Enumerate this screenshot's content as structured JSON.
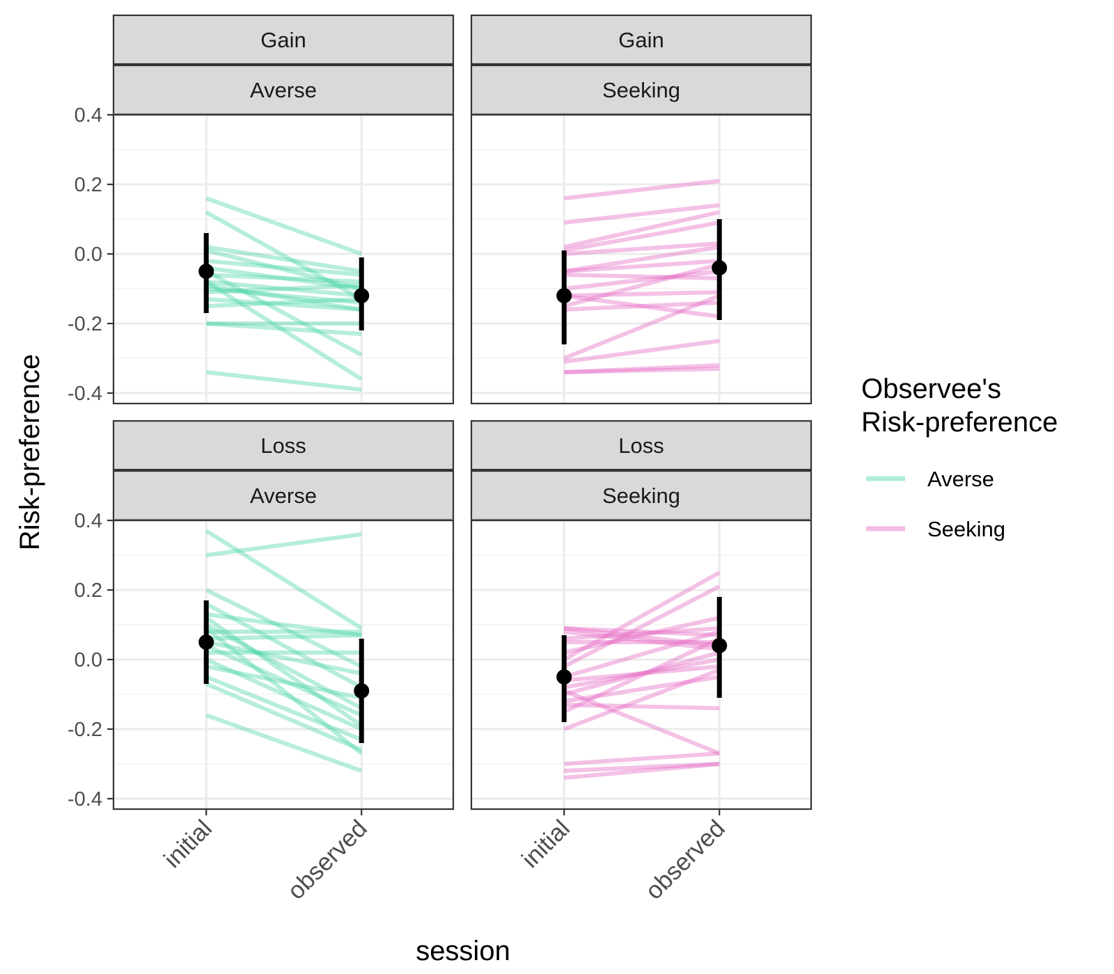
{
  "chart_data": {
    "type": "line",
    "facet_rows": [
      "Gain",
      "Loss"
    ],
    "facet_cols": [
      "Averse",
      "Seeking"
    ],
    "x_categories": [
      "initial",
      "observed"
    ],
    "xlabel": "session",
    "ylabel": "Risk-preference",
    "ylim": [
      -0.43,
      0.4
    ],
    "yticks": [
      "0.4",
      "0.2",
      "0.0",
      "-0.2",
      "-0.4"
    ],
    "ytick_values": [
      0.4,
      0.2,
      0.0,
      -0.2,
      -0.4
    ],
    "grid": true,
    "legend": {
      "title_lines": [
        "Observee's",
        "Risk-preference"
      ],
      "placement": "right",
      "items": [
        {
          "label": "Averse",
          "color": "#52d8a8"
        },
        {
          "label": "Seeking",
          "color": "#e66ec6"
        }
      ]
    },
    "panels": [
      {
        "row": "Gain",
        "col": "Averse",
        "color": "#52d8a8",
        "lines": [
          [
            0.16,
            0.0
          ],
          [
            0.12,
            -0.13
          ],
          [
            0.02,
            -0.05
          ],
          [
            0.01,
            -0.1
          ],
          [
            -0.02,
            -0.06
          ],
          [
            -0.04,
            -0.1
          ],
          [
            -0.06,
            -0.08
          ],
          [
            -0.08,
            -0.12
          ],
          [
            -0.09,
            -0.16
          ],
          [
            -0.1,
            -0.14
          ],
          [
            -0.11,
            -0.09
          ],
          [
            -0.13,
            -0.16
          ],
          [
            -0.15,
            -0.13
          ],
          [
            -0.05,
            -0.29
          ],
          [
            -0.08,
            -0.36
          ],
          [
            -0.2,
            -0.23
          ],
          [
            -0.2,
            -0.2
          ],
          [
            -0.34,
            -0.39
          ]
        ],
        "mean": {
          "initial": -0.05,
          "observed": -0.12
        },
        "ci": {
          "initial": [
            -0.17,
            0.06
          ],
          "observed": [
            -0.22,
            -0.01
          ]
        }
      },
      {
        "row": "Gain",
        "col": "Seeking",
        "color": "#e66ec6",
        "lines": [
          [
            0.16,
            0.21
          ],
          [
            0.09,
            0.14
          ],
          [
            0.02,
            0.12
          ],
          [
            0.01,
            0.09
          ],
          [
            0.0,
            0.03
          ],
          [
            -0.05,
            0.02
          ],
          [
            -0.05,
            -0.02
          ],
          [
            -0.06,
            -0.07
          ],
          [
            -0.1,
            -0.05
          ],
          [
            -0.12,
            -0.11
          ],
          [
            -0.12,
            -0.18
          ],
          [
            -0.15,
            -0.03
          ],
          [
            -0.16,
            -0.14
          ],
          [
            -0.3,
            -0.12
          ],
          [
            -0.31,
            -0.25
          ],
          [
            -0.34,
            -0.32
          ],
          [
            -0.34,
            -0.33
          ]
        ],
        "mean": {
          "initial": -0.12,
          "observed": -0.04
        },
        "ci": {
          "initial": [
            -0.26,
            0.01
          ],
          "observed": [
            -0.19,
            0.1
          ]
        }
      },
      {
        "row": "Loss",
        "col": "Averse",
        "color": "#52d8a8",
        "lines": [
          [
            0.37,
            0.09
          ],
          [
            0.3,
            0.36
          ],
          [
            0.2,
            -0.02
          ],
          [
            0.16,
            -0.08
          ],
          [
            0.13,
            0.07
          ],
          [
            0.1,
            -0.14
          ],
          [
            0.08,
            0.08
          ],
          [
            0.06,
            0.07
          ],
          [
            0.05,
            -0.04
          ],
          [
            0.04,
            -0.16
          ],
          [
            0.02,
            0.02
          ],
          [
            0.0,
            -0.2
          ],
          [
            -0.02,
            -0.11
          ],
          [
            -0.05,
            -0.23
          ],
          [
            -0.07,
            -0.26
          ],
          [
            -0.16,
            -0.32
          ],
          [
            0.09,
            -0.27
          ],
          [
            0.12,
            -0.19
          ]
        ],
        "mean": {
          "initial": 0.05,
          "observed": -0.09
        },
        "ci": {
          "initial": [
            -0.07,
            0.17
          ],
          "observed": [
            -0.24,
            0.06
          ]
        }
      },
      {
        "row": "Loss",
        "col": "Seeking",
        "color": "#e66ec6",
        "lines": [
          [
            0.09,
            0.04
          ],
          [
            0.09,
            0.07
          ],
          [
            0.08,
            0.03
          ],
          [
            0.06,
            0.09
          ],
          [
            0.05,
            0.05
          ],
          [
            0.02,
            0.12
          ],
          [
            0.0,
            0.25
          ],
          [
            -0.02,
            0.21
          ],
          [
            -0.05,
            0.08
          ],
          [
            -0.06,
            -0.02
          ],
          [
            -0.08,
            0.0
          ],
          [
            -0.09,
            -0.27
          ],
          [
            -0.1,
            0.02
          ],
          [
            -0.12,
            -0.05
          ],
          [
            -0.13,
            -0.14
          ],
          [
            -0.15,
            0.06
          ],
          [
            -0.2,
            -0.03
          ],
          [
            -0.3,
            -0.27
          ],
          [
            -0.32,
            -0.3
          ],
          [
            -0.34,
            -0.3
          ]
        ],
        "mean": {
          "initial": -0.05,
          "observed": 0.04
        },
        "ci": {
          "initial": [
            -0.18,
            0.07
          ],
          "observed": [
            -0.11,
            0.18
          ]
        }
      }
    ]
  }
}
